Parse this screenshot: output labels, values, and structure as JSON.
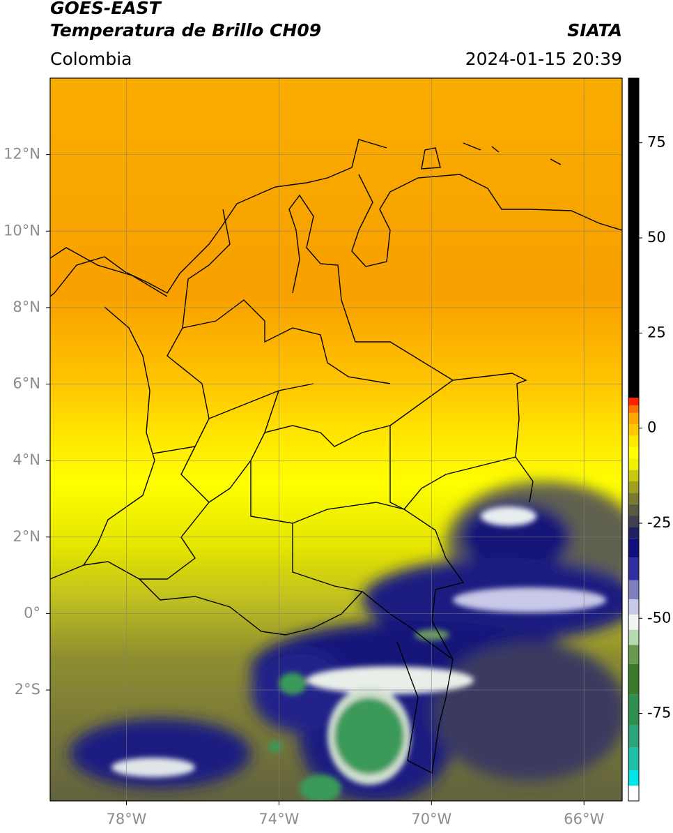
{
  "map": {
    "title": "GOES-EAST",
    "product": "Temperatura de Brillo CH09",
    "source": "SIATA",
    "region": "Colombia",
    "datetime": "2024-01-15 20:39",
    "xlim": [
      -80,
      -65
    ],
    "ylim": [
      -4.9,
      14
    ],
    "xticks": [
      {
        "value": -78,
        "label": "78°W"
      },
      {
        "value": -74,
        "label": "74°W"
      },
      {
        "value": -70,
        "label": "70°W"
      },
      {
        "value": -66,
        "label": "66°W"
      }
    ],
    "yticks": [
      {
        "value": 12,
        "label": "12°N"
      },
      {
        "value": 10,
        "label": "10°N"
      },
      {
        "value": 8,
        "label": "8°N"
      },
      {
        "value": 6,
        "label": "6°N"
      },
      {
        "value": 4,
        "label": "4°N"
      },
      {
        "value": 2,
        "label": "2°N"
      },
      {
        "value": 0,
        "label": "0°"
      },
      {
        "value": -2,
        "label": "2°S"
      }
    ],
    "grid": true,
    "colorbar": {
      "range": [
        -98,
        92
      ],
      "ticks": [
        75,
        50,
        25,
        0,
        -25,
        -50,
        -75
      ],
      "bands": [
        {
          "value": -98,
          "color": "#ffffff"
        },
        {
          "value": -94,
          "color": "#00e5e5"
        },
        {
          "value": -90,
          "color": "#1fbfa8"
        },
        {
          "value": -84,
          "color": "#2aa57a"
        },
        {
          "value": -78,
          "color": "#2e8f4e"
        },
        {
          "value": -70,
          "color": "#3a7a2a"
        },
        {
          "value": -62,
          "color": "#6a9a50"
        },
        {
          "value": -57,
          "color": "#b8d8b0"
        },
        {
          "value": -53,
          "color": "#f0f5f0"
        },
        {
          "value": -49,
          "color": "#c8c8e8"
        },
        {
          "value": -45,
          "color": "#8080c0"
        },
        {
          "value": -40,
          "color": "#3030a0"
        },
        {
          "value": -34,
          "color": "#10107a"
        },
        {
          "value": -29,
          "color": "#202060"
        },
        {
          "value": -26,
          "color": "#404050"
        },
        {
          "value": -23,
          "color": "#5a5a40"
        },
        {
          "value": -20,
          "color": "#7a7a30"
        },
        {
          "value": -17,
          "color": "#a0a020"
        },
        {
          "value": -14,
          "color": "#c8c810"
        },
        {
          "value": -11,
          "color": "#f0f000"
        },
        {
          "value": -8,
          "color": "#ffff00"
        },
        {
          "value": -5,
          "color": "#ffe800"
        },
        {
          "value": -2,
          "color": "#ffc800"
        },
        {
          "value": 1,
          "color": "#ffa800"
        },
        {
          "value": 4,
          "color": "#ff7000"
        },
        {
          "value": 6,
          "color": "#ff2000"
        },
        {
          "value": 8,
          "color": "#000000"
        }
      ]
    }
  }
}
